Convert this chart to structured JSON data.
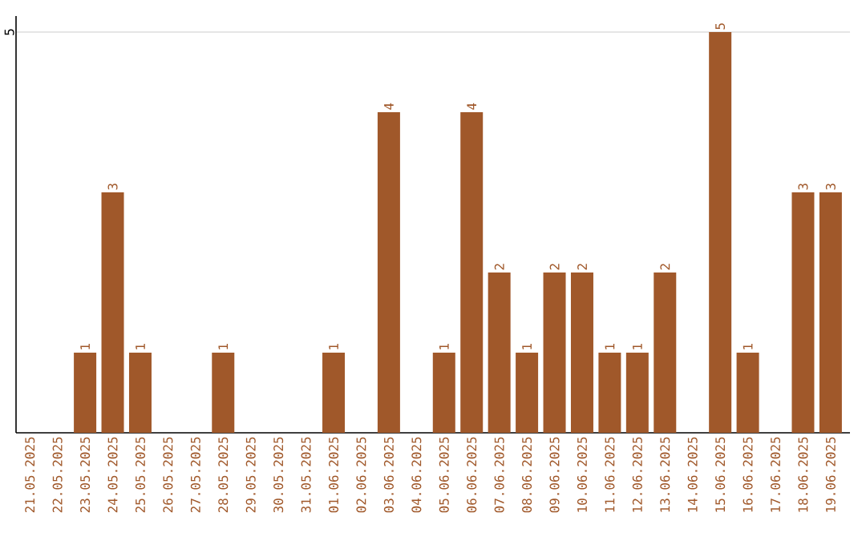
{
  "chart_data": {
    "type": "bar",
    "categories": [
      "21.05.2025",
      "22.05.2025",
      "23.05.2025",
      "24.05.2025",
      "25.05.2025",
      "26.05.2025",
      "27.05.2025",
      "28.05.2025",
      "29.05.2025",
      "30.05.2025",
      "31.05.2025",
      "01.06.2025",
      "02.06.2025",
      "03.06.2025",
      "04.06.2025",
      "05.06.2025",
      "06.06.2025",
      "07.06.2025",
      "08.06.2025",
      "09.06.2025",
      "10.06.2025",
      "11.06.2025",
      "12.06.2025",
      "13.06.2025",
      "14.06.2025",
      "15.06.2025",
      "16.06.2025",
      "17.06.2025",
      "18.06.2025",
      "19.06.2025"
    ],
    "values": [
      0,
      0,
      1,
      3,
      1,
      0,
      0,
      1,
      0,
      0,
      0,
      1,
      0,
      4,
      0,
      1,
      4,
      2,
      1,
      2,
      2,
      1,
      1,
      2,
      0,
      5,
      1,
      0,
      3,
      3
    ],
    "value_labels": [
      null,
      null,
      "1",
      "3",
      "1",
      null,
      null,
      "1",
      null,
      null,
      null,
      "1",
      null,
      "4",
      null,
      "1",
      "4",
      "2",
      "1",
      "2",
      "2",
      "1",
      "1",
      "2",
      null,
      "5",
      "1",
      null,
      "3",
      "3"
    ],
    "color": "#a0582a",
    "ylim": [
      0,
      5.2
    ],
    "yticks": [
      5
    ],
    "grid": "y"
  }
}
